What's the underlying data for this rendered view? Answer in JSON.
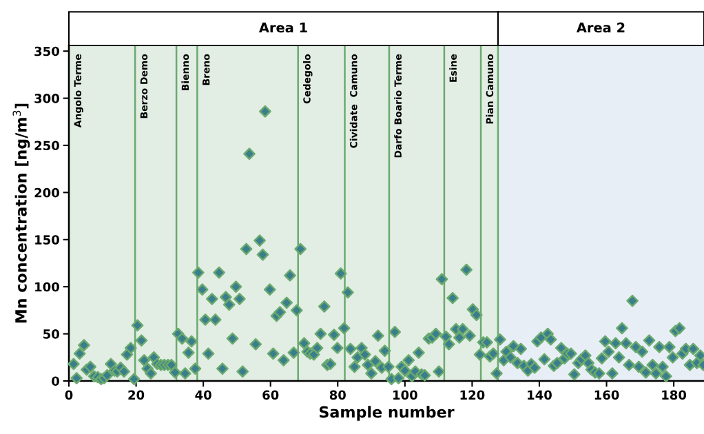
{
  "chart_data": {
    "type": "scatter",
    "xlabel": "Sample number",
    "ylabel": "Mn concentration [ng/m$^{3}$]",
    "xlim": [
      0,
      189
    ],
    "ylim": [
      0,
      356
    ],
    "xticks": [
      0,
      20,
      40,
      60,
      80,
      100,
      120,
      140,
      160,
      180
    ],
    "yticks": [
      0,
      50,
      100,
      150,
      200,
      250,
      300,
      350
    ],
    "grid": false,
    "marker": "diamond",
    "bands": [
      {
        "axis": "x",
        "from": 0,
        "to": 127.7,
        "label": "Area 1",
        "color": "#e2ede4"
      },
      {
        "axis": "x",
        "from": 127.7,
        "to": 189,
        "label": "Area 2",
        "color": "#e8eef6"
      }
    ],
    "ref_lines": [
      {
        "axis": "x",
        "value": 0,
        "label": "Angolo Terme",
        "color": "#6aaa6e"
      },
      {
        "axis": "x",
        "value": 19.7,
        "label": "Berzo Demo",
        "color": "#6aaa6e"
      },
      {
        "axis": "x",
        "value": 32,
        "label": "Bienno",
        "color": "#6aaa6e"
      },
      {
        "axis": "x",
        "value": 38.2,
        "label": "Breno",
        "color": "#6aaa6e"
      },
      {
        "axis": "x",
        "value": 68.2,
        "label": "Cedegolo",
        "color": "#6aaa6e"
      },
      {
        "axis": "x",
        "value": 82.1,
        "label": "Cividate  Camuno",
        "color": "#6aaa6e"
      },
      {
        "axis": "x",
        "value": 95.3,
        "label": "Darfo Boario Terme",
        "color": "#6aaa6e"
      },
      {
        "axis": "x",
        "value": 111.7,
        "label": "Esine",
        "color": "#6aaa6e"
      },
      {
        "axis": "x",
        "value": 122.6,
        "label": "Pian Camuno",
        "color": "#6aaa6e"
      },
      {
        "axis": "x",
        "value": 127.7,
        "label": null,
        "color": "#6aaa6e"
      }
    ],
    "series": [
      {
        "color": "#3a7d8c",
        "x": [
          1.4,
          2.3,
          3.2,
          4.5,
          5.3,
          6.4,
          7.5,
          8.6,
          9.6,
          10.5,
          11.4,
          12.5,
          13.6,
          14.4,
          15.4,
          16.4,
          17.3,
          18.4,
          19.4,
          20.4,
          21.6,
          22.4,
          23.4,
          24.4,
          25.3,
          26.3,
          27.4,
          28.4,
          29.5,
          30.5,
          31.6,
          32.5,
          33.7,
          34.6,
          35.6,
          36.5,
          37.6,
          38.5,
          39.7,
          40.6,
          41.5,
          42.6,
          43.6,
          44.7,
          45.7,
          46.7,
          47.7,
          48.7,
          49.7,
          50.8,
          51.7,
          52.8,
          53.7,
          55.6,
          56.8,
          57.7,
          58.4,
          59.8,
          60.8,
          61.8,
          62.8,
          63.9,
          64.8,
          65.8,
          66.9,
          67.8,
          68.9,
          70,
          71,
          71.8,
          72.9,
          73.9,
          74.9,
          76,
          76.9,
          77.8,
          78.9,
          79.9,
          80.9,
          81.9,
          83,
          83.8,
          85,
          85.9,
          87.1,
          88.1,
          89,
          90,
          91.2,
          92,
          93.1,
          94,
          95.1,
          96,
          97,
          98.1,
          99,
          100,
          101.1,
          102.1,
          103.1,
          104.1,
          105,
          105.9,
          107.1,
          108.1,
          109.2,
          110.1,
          111,
          112.2,
          113.1,
          114.2,
          115.2,
          116.2,
          117.2,
          118.3,
          119.3,
          120.2,
          121.3,
          122.3,
          123.3,
          124.4,
          125.3,
          126.3,
          127.3,
          128.3,
          129.4,
          130.2,
          131.4,
          132.3,
          133.5,
          134.5,
          135.4,
          136.6,
          137.6,
          138.6,
          139.4,
          140.5,
          141.5,
          142.5,
          143.4,
          144.3,
          145.3,
          146.5,
          147.5,
          148.3,
          149.4,
          150.4,
          151.6,
          152.5,
          153.7,
          154.6,
          155.5,
          156.6,
          157.8,
          158.6,
          159.6,
          160.6,
          161.7,
          162.7,
          163.7,
          164.6,
          165.8,
          166.7,
          167.7,
          168.7,
          169.6,
          170.6,
          171.7,
          172.7,
          173.7,
          174.7,
          175.7,
          176.7,
          177.7,
          178.7,
          179.7,
          180.5,
          181.7,
          182.6,
          183.6,
          184.8,
          185.8,
          186.9,
          187.9,
          188.8
        ],
        "values": [
          18,
          3,
          29,
          38,
          12,
          15,
          5,
          4,
          2,
          3,
          6,
          18,
          11,
          10,
          14,
          10,
          28,
          35,
          2,
          59,
          43,
          22,
          13,
          8,
          25,
          18,
          17,
          17,
          17,
          17,
          9,
          50,
          45,
          8,
          30,
          42,
          13,
          115,
          97,
          65,
          29,
          87,
          65,
          115,
          13,
          89,
          81,
          45,
          100,
          87,
          10,
          140,
          241,
          39,
          149,
          134,
          286,
          97,
          29,
          69,
          73,
          22,
          83,
          112,
          30,
          75,
          140,
          40,
          31,
          29,
          28,
          35,
          50,
          79,
          17,
          18,
          49,
          35,
          114,
          56,
          94,
          34,
          15,
          25,
          35,
          28,
          17,
          8,
          21,
          48,
          14,
          32,
          15,
          2,
          52,
          3,
          15,
          11,
          22,
          5,
          10,
          30,
          7,
          6,
          45,
          46,
          50,
          10,
          108,
          47,
          39,
          88,
          55,
          46,
          55,
          118,
          48,
          76,
          70,
          28,
          41,
          41,
          26,
          29,
          8,
          44,
          22,
          31,
          25,
          37,
          19,
          34,
          16,
          11,
          18,
          14,
          42,
          46,
          23,
          50,
          44,
          16,
          19,
          35,
          24,
          29,
          29,
          7,
          19,
          23,
          27,
          19,
          12,
          9,
          8,
          24,
          42,
          31,
          8,
          40,
          25,
          56,
          40,
          17,
          85,
          36,
          15,
          31,
          9,
          43,
          17,
          8,
          36,
          15,
          5,
          36,
          25,
          53,
          56,
          29,
          34,
          17,
          34,
          19,
          27,
          17
        ]
      }
    ]
  }
}
